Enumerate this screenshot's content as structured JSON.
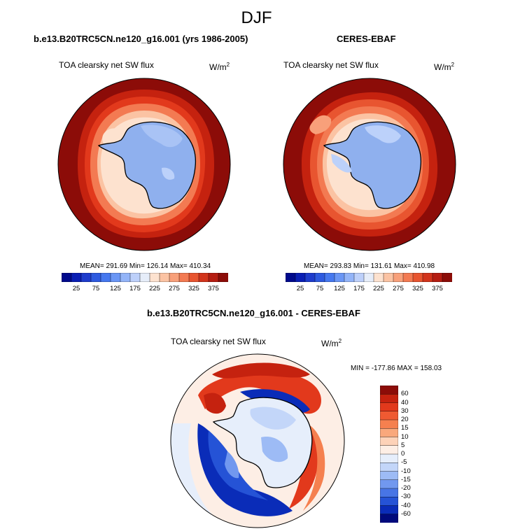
{
  "season": "DJF",
  "left_panel": {
    "title": "b.e13.B20TRC5CN.ne120_g16.001 (yrs 1986-2005)",
    "variable": "TOA clearsky net SW flux",
    "units_base": "W/m",
    "units_exp": "2",
    "stats": "MEAN= 291.69  Min= 126.14  Max= 410.34"
  },
  "right_panel": {
    "title": "CERES-EBAF",
    "variable": "TOA clearsky net SW flux",
    "units_base": "W/m",
    "units_exp": "2",
    "stats": "MEAN= 293.83  Min= 131.61  Max= 410.98"
  },
  "diff_panel": {
    "title": "b.e13.B20TRC5CN.ne120_g16.001 - CERES-EBAF",
    "variable": "TOA clearsky net SW flux",
    "units_base": "W/m",
    "units_exp": "2",
    "stats": "MIN = -177.86 MAX = 158.03"
  },
  "colorbar": {
    "labels": [
      "25",
      "75",
      "125",
      "175",
      "225",
      "275",
      "325",
      "375"
    ],
    "colors": [
      "#000a8c",
      "#0a1fb4",
      "#1e3ccc",
      "#2e5ae0",
      "#4678ef",
      "#6a96f5",
      "#93b4f8",
      "#bdd0fa",
      "#e6edf9",
      "#fde2cf",
      "#fbc3a3",
      "#f8a07a",
      "#f37a52",
      "#e85530",
      "#d2341c",
      "#b51d12",
      "#8c0c08"
    ]
  },
  "diff_colorbar": {
    "labels": [
      "60",
      "40",
      "30",
      "20",
      "15",
      "10",
      "5",
      "0",
      "-5",
      "-10",
      "-15",
      "-20",
      "-30",
      "-40",
      "-60"
    ],
    "colors": [
      "#8c0c08",
      "#c5220f",
      "#e2391c",
      "#ef5a32",
      "#f5804f",
      "#f9a87c",
      "#fdd2b8",
      "#fdeee5",
      "#e6eefb",
      "#c3d6f9",
      "#9dbbf5",
      "#7198ef",
      "#4875e5",
      "#2553d6",
      "#0a2cb8",
      "#000a7c"
    ]
  }
}
